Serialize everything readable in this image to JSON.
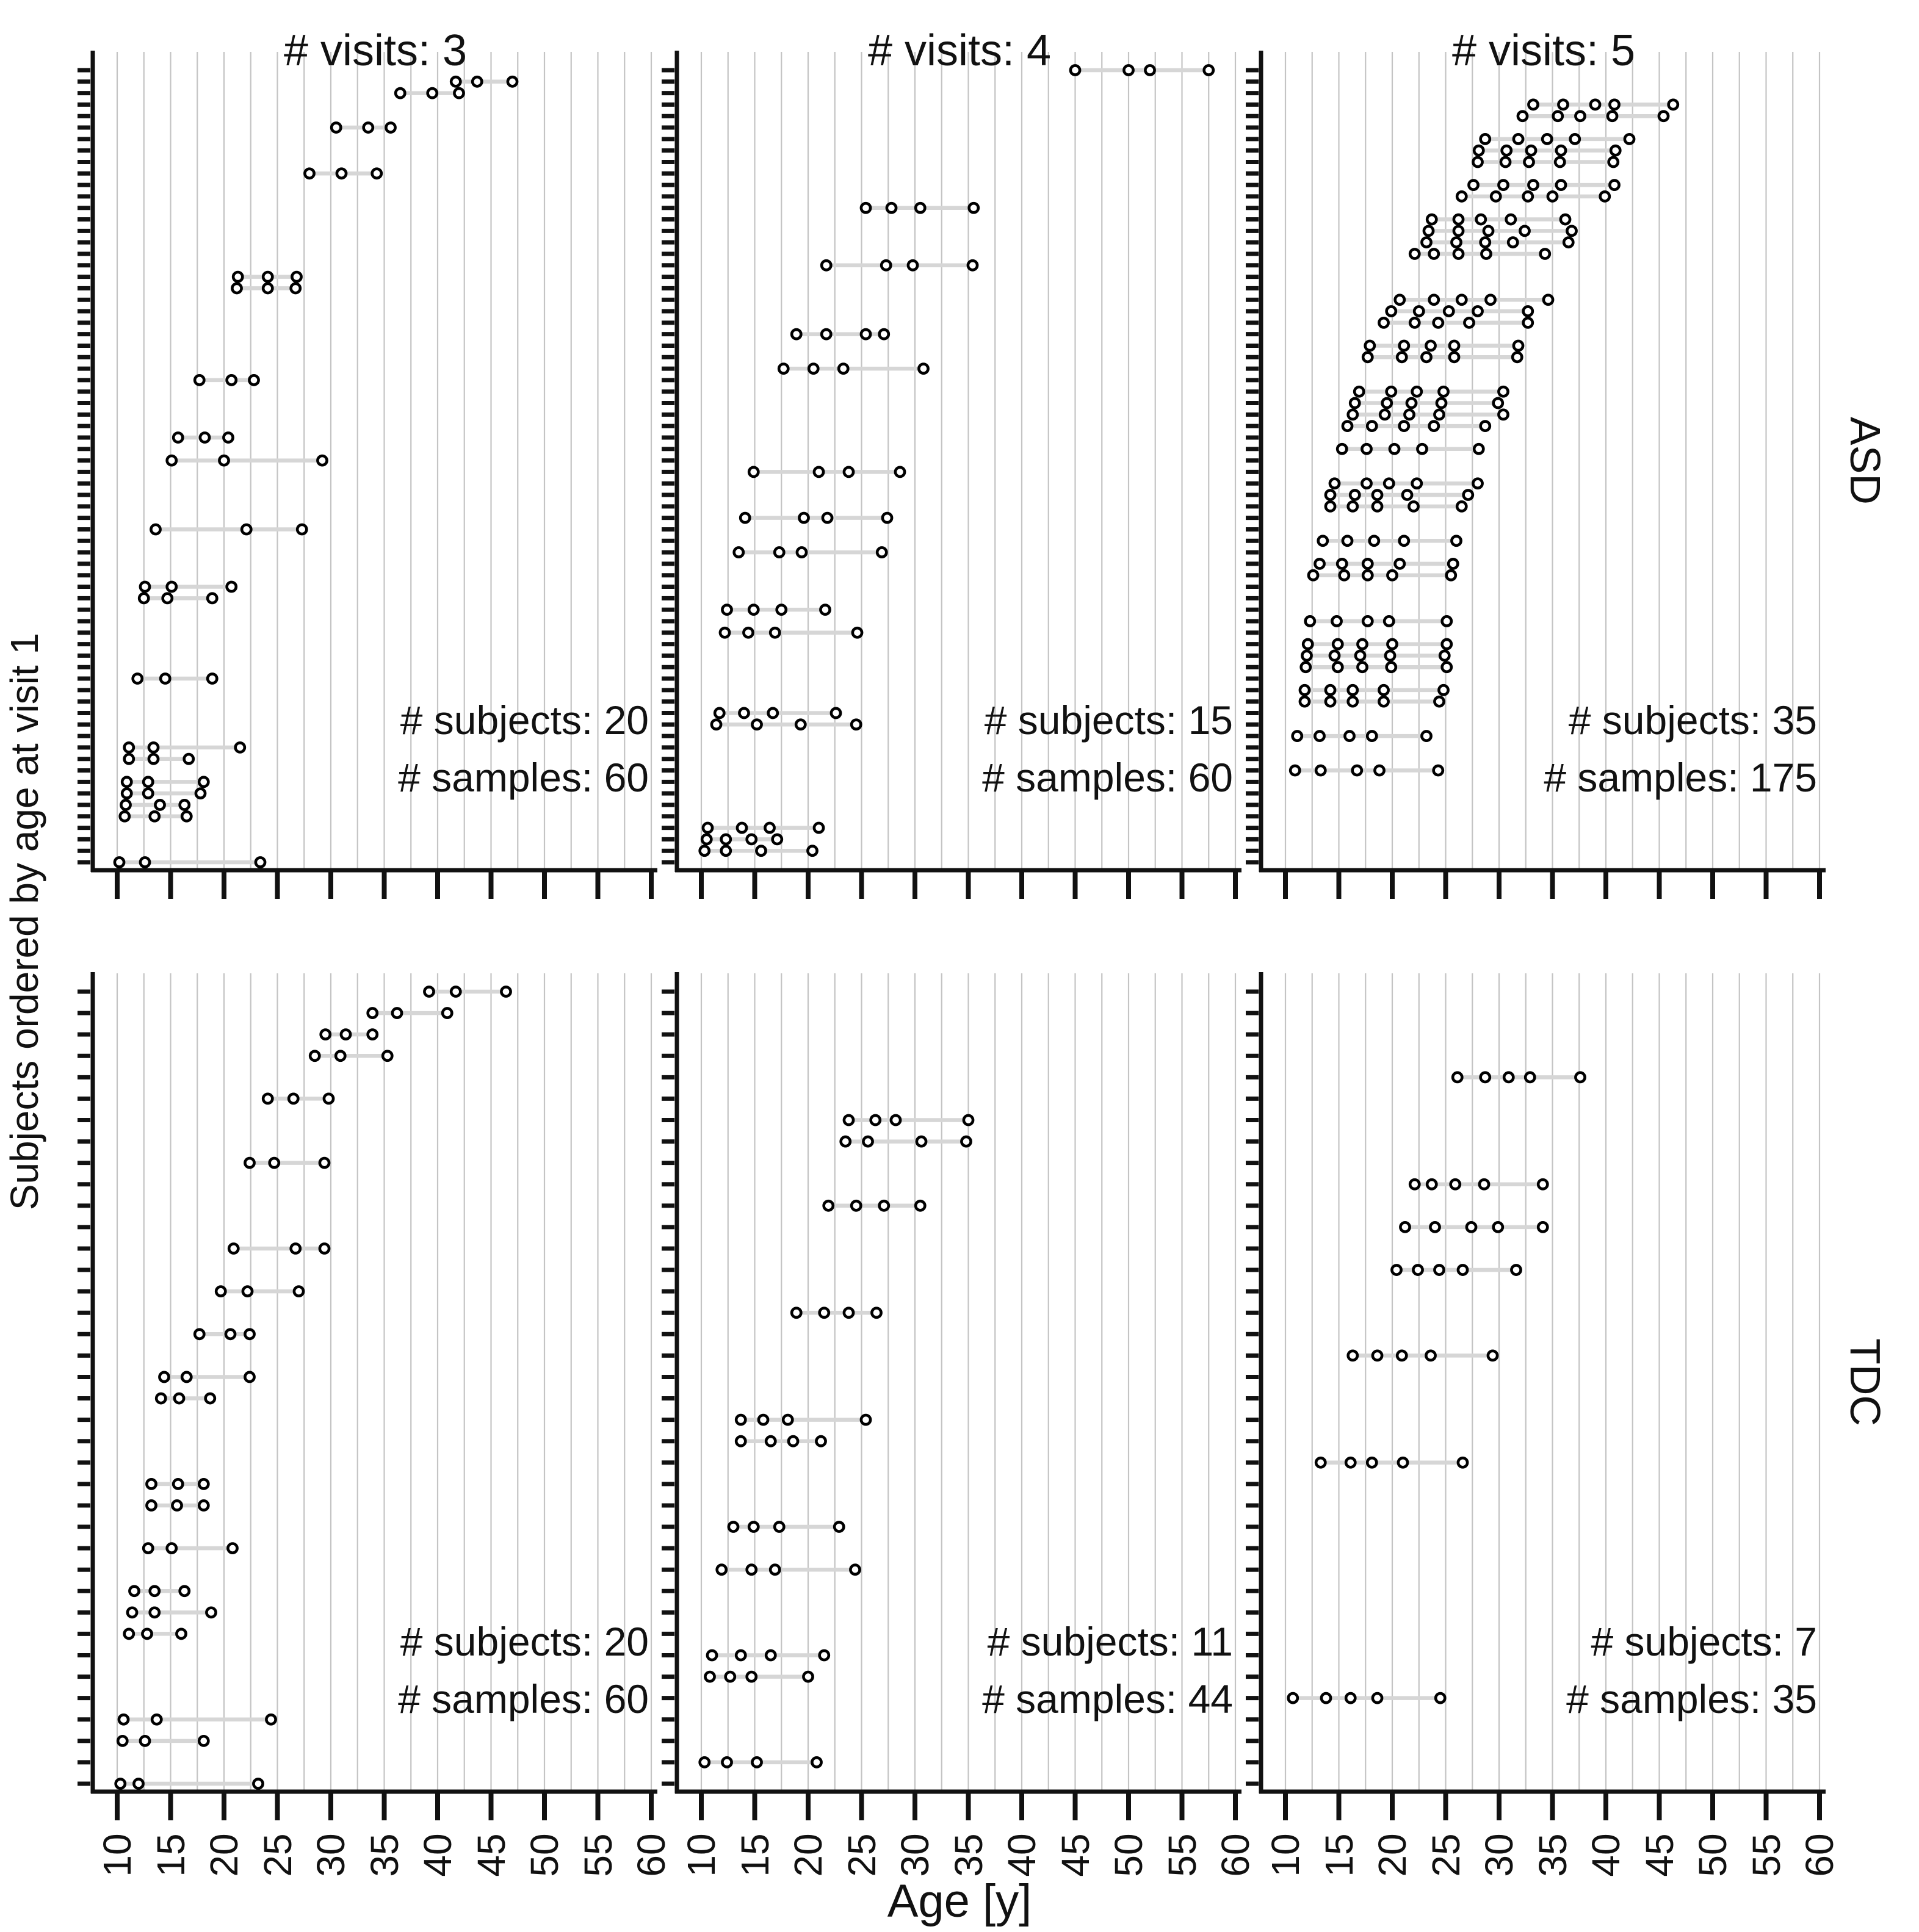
{
  "figure": {
    "ylabel": "Subjects ordered by age at visit 1",
    "xlabel": "Age [y]",
    "col_titles": [
      "# visits: 3",
      "# visits: 4",
      "# visits: 5"
    ],
    "row_labels": [
      "ASD",
      "TDC"
    ],
    "colors": {
      "background": "#ffffff",
      "gridline": "#c4c4c4",
      "connector": "#d6d6d6",
      "marker_stroke": "#000000",
      "marker_fill": "#ffffff",
      "axis": "#111111",
      "text": "#111111"
    }
  },
  "axes": {
    "x_ticks": [
      10,
      15,
      20,
      25,
      30,
      35,
      40,
      45,
      50,
      55,
      60
    ],
    "x_tick_labels": [
      "10",
      "15",
      "20",
      "25",
      "30",
      "35",
      "40",
      "45",
      "50",
      "55",
      "60"
    ],
    "x_minor_step": 2.5,
    "x_range": [
      8,
      60.5
    ],
    "grid": true
  },
  "chart_data": [
    {
      "type": "scatter",
      "group": "ASD",
      "visits": 3,
      "row": 0,
      "col": 0,
      "title": "# visits: 3",
      "n_subjects": 20,
      "n_samples": 60,
      "annotation_lines": [
        "# subjects: 20",
        "# samples: 60"
      ],
      "subjects": [
        [
          10.2,
          12.6,
          23.4
        ],
        [
          10.7,
          13.5,
          16.5
        ],
        [
          10.8,
          14.0,
          16.3
        ],
        [
          10.9,
          12.9,
          17.8
        ],
        [
          10.9,
          12.9,
          18.1
        ],
        [
          11.1,
          13.4,
          16.7
        ],
        [
          11.1,
          13.4,
          21.5
        ],
        [
          11.9,
          14.5,
          18.9
        ],
        [
          12.5,
          14.7,
          18.9
        ],
        [
          12.6,
          15.1,
          20.7
        ],
        [
          13.6,
          22.1,
          27.3
        ],
        [
          15.1,
          20.0,
          29.2
        ],
        [
          15.7,
          18.2,
          20.4
        ],
        [
          17.7,
          20.7,
          22.8
        ],
        [
          21.2,
          24.1,
          26.7
        ],
        [
          21.3,
          24.1,
          26.8
        ],
        [
          28.0,
          31.0,
          34.3
        ],
        [
          30.5,
          33.5,
          35.6
        ],
        [
          36.5,
          39.5,
          42.0
        ],
        [
          41.7,
          43.7,
          47.0
        ]
      ]
    },
    {
      "type": "scatter",
      "group": "ASD",
      "visits": 4,
      "row": 0,
      "col": 1,
      "title": "# visits: 4",
      "n_subjects": 15,
      "n_samples": 60,
      "annotation_lines": [
        "# subjects: 15",
        "# samples: 60"
      ],
      "subjects": [
        [
          10.3,
          12.3,
          15.6,
          20.4
        ],
        [
          10.5,
          12.3,
          14.7,
          17.1
        ],
        [
          10.6,
          13.8,
          16.4,
          21.0
        ],
        [
          11.4,
          15.2,
          19.3,
          24.5
        ],
        [
          11.7,
          14.0,
          16.7,
          22.6
        ],
        [
          12.2,
          14.4,
          16.9,
          24.6
        ],
        [
          12.4,
          14.9,
          17.5,
          21.6
        ],
        [
          13.5,
          17.3,
          19.4,
          26.9
        ],
        [
          14.1,
          19.6,
          21.8,
          27.4
        ],
        [
          14.9,
          21.0,
          23.8,
          28.6
        ],
        [
          17.7,
          20.5,
          23.3,
          30.8
        ],
        [
          18.9,
          21.7,
          25.4,
          27.1
        ],
        [
          21.7,
          27.3,
          29.8,
          35.4
        ],
        [
          25.4,
          27.8,
          30.5,
          35.5
        ],
        [
          45.0,
          50.0,
          52.0,
          57.5
        ]
      ]
    },
    {
      "type": "scatter",
      "group": "ASD",
      "visits": 5,
      "row": 0,
      "col": 2,
      "title": "# visits: 5",
      "n_subjects": 35,
      "n_samples": 175,
      "annotation_lines": [
        "# subjects: 35",
        "# samples: 175"
      ],
      "subjects": [
        [
          10.9,
          13.3,
          16.7,
          18.8,
          24.3
        ],
        [
          11.1,
          13.2,
          16.0,
          18.1,
          23.2
        ],
        [
          11.8,
          14.2,
          16.3,
          19.2,
          24.4
        ],
        [
          11.8,
          14.2,
          16.3,
          19.2,
          24.8
        ],
        [
          11.9,
          14.9,
          17.2,
          19.9,
          25.1
        ],
        [
          12.0,
          14.6,
          17.0,
          19.8,
          24.9
        ],
        [
          12.1,
          14.9,
          17.2,
          20.0,
          25.1
        ],
        [
          12.3,
          14.8,
          17.7,
          19.7,
          25.1
        ],
        [
          12.6,
          15.5,
          17.7,
          20.0,
          25.5
        ],
        [
          13.2,
          15.3,
          17.7,
          20.7,
          25.7
        ],
        [
          13.5,
          15.8,
          18.3,
          21.1,
          26.0
        ],
        [
          14.2,
          16.3,
          18.6,
          22.0,
          26.5
        ],
        [
          14.2,
          16.5,
          18.6,
          21.4,
          27.1
        ],
        [
          14.6,
          17.6,
          19.7,
          22.3,
          28.0
        ],
        [
          15.3,
          17.6,
          20.2,
          22.8,
          28.1
        ],
        [
          15.8,
          18.1,
          21.1,
          23.9,
          28.7
        ],
        [
          16.3,
          19.3,
          21.6,
          24.4,
          30.4
        ],
        [
          16.5,
          19.5,
          21.8,
          24.6,
          29.9
        ],
        [
          16.9,
          19.9,
          22.3,
          24.8,
          30.4
        ],
        [
          17.7,
          20.9,
          23.2,
          25.8,
          31.7
        ],
        [
          17.9,
          21.1,
          23.6,
          25.8,
          31.8
        ],
        [
          19.2,
          22.1,
          24.3,
          27.2,
          32.7
        ],
        [
          19.9,
          22.5,
          25.3,
          28.0,
          32.7
        ],
        [
          20.7,
          23.9,
          26.5,
          29.2,
          34.6
        ],
        [
          22.1,
          23.9,
          26.2,
          28.8,
          34.3
        ],
        [
          23.2,
          26.0,
          28.7,
          31.3,
          36.5
        ],
        [
          23.4,
          26.2,
          29.0,
          32.4,
          36.8
        ],
        [
          23.7,
          26.2,
          28.3,
          31.1,
          36.2
        ],
        [
          26.5,
          29.7,
          32.7,
          35.0,
          39.9
        ],
        [
          27.6,
          30.4,
          33.2,
          35.8,
          40.8
        ],
        [
          28.0,
          30.6,
          32.8,
          35.7,
          40.7
        ],
        [
          28.1,
          30.7,
          33.0,
          35.8,
          40.9
        ],
        [
          28.7,
          31.8,
          34.5,
          37.1,
          42.2
        ],
        [
          32.2,
          35.5,
          37.6,
          40.6,
          45.4
        ],
        [
          33.2,
          36.0,
          39.0,
          40.8,
          46.3
        ]
      ]
    },
    {
      "type": "scatter",
      "group": "TDC",
      "visits": 3,
      "row": 1,
      "col": 0,
      "title": "# visits: 3",
      "n_subjects": 20,
      "n_samples": 60,
      "annotation_lines": [
        "# subjects: 20",
        "# samples: 60"
      ],
      "subjects": [
        [
          10.3,
          12.0,
          23.2
        ],
        [
          10.5,
          12.6,
          18.1
        ],
        [
          10.6,
          13.7,
          24.4
        ],
        [
          11.1,
          12.8,
          16.0
        ],
        [
          11.4,
          13.5,
          18.8
        ],
        [
          11.6,
          13.5,
          16.3
        ],
        [
          12.9,
          15.1,
          20.8
        ],
        [
          13.2,
          15.6,
          18.1
        ],
        [
          13.2,
          15.7,
          18.1
        ],
        [
          14.1,
          15.8,
          18.7
        ],
        [
          14.4,
          16.5,
          22.4
        ],
        [
          17.7,
          20.6,
          22.4
        ],
        [
          19.7,
          22.2,
          27.0
        ],
        [
          20.9,
          26.7,
          29.4
        ],
        [
          22.4,
          24.7,
          29.4
        ],
        [
          24.1,
          26.5,
          29.8
        ],
        [
          28.5,
          30.9,
          35.3
        ],
        [
          29.5,
          31.4,
          33.9
        ],
        [
          33.9,
          36.2,
          40.9
        ],
        [
          39.2,
          41.7,
          46.4
        ]
      ]
    },
    {
      "type": "scatter",
      "group": "TDC",
      "visits": 4,
      "row": 1,
      "col": 1,
      "title": "# visits: 4",
      "n_subjects": 11,
      "n_samples": 44,
      "annotation_lines": [
        "# subjects: 11",
        "# samples: 44"
      ],
      "subjects": [
        [
          10.3,
          12.4,
          15.2,
          20.8
        ],
        [
          10.8,
          12.7,
          14.7,
          20.0
        ],
        [
          11.0,
          13.7,
          16.5,
          21.5
        ],
        [
          11.9,
          14.7,
          16.9,
          24.4
        ],
        [
          13.0,
          14.9,
          17.3,
          22.9
        ],
        [
          13.7,
          16.5,
          18.6,
          21.2
        ],
        [
          13.7,
          15.8,
          18.1,
          25.4
        ],
        [
          18.9,
          21.5,
          23.8,
          26.4
        ],
        [
          21.9,
          24.5,
          27.1,
          30.5
        ],
        [
          23.5,
          25.6,
          30.6,
          34.8
        ],
        [
          23.8,
          26.3,
          28.2,
          35.0
        ]
      ]
    },
    {
      "type": "scatter",
      "group": "TDC",
      "visits": 5,
      "row": 1,
      "col": 2,
      "title": "# visits: 5",
      "n_subjects": 7,
      "n_samples": 35,
      "annotation_lines": [
        "# subjects: 7",
        "# samples: 35"
      ],
      "subjects": [
        [
          10.7,
          13.8,
          16.1,
          18.6,
          24.5
        ],
        [
          13.3,
          16.1,
          18.1,
          21.0,
          26.6
        ],
        [
          16.3,
          18.6,
          20.9,
          23.6,
          29.4
        ],
        [
          20.4,
          22.4,
          24.4,
          26.6,
          31.6
        ],
        [
          21.2,
          24.0,
          27.4,
          29.9,
          34.1
        ],
        [
          22.1,
          23.7,
          25.9,
          28.6,
          34.1
        ],
        [
          26.1,
          28.7,
          30.9,
          32.9,
          37.6
        ]
      ]
    }
  ]
}
